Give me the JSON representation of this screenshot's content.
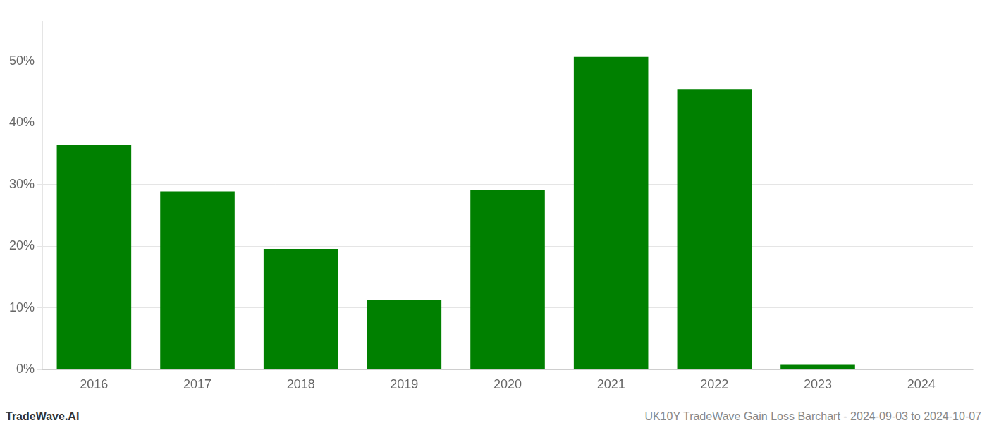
{
  "chart_data": {
    "type": "bar",
    "categories": [
      "2016",
      "2017",
      "2018",
      "2019",
      "2020",
      "2021",
      "2022",
      "2023",
      "2024"
    ],
    "values": [
      0.364,
      0.289,
      0.196,
      0.113,
      0.292,
      0.507,
      0.455,
      0.008,
      0.0
    ],
    "color": "#008000",
    "ylim": [
      0,
      0.565
    ],
    "yticks": [
      {
        "value": 0.0,
        "label": "0%"
      },
      {
        "value": 0.1,
        "label": "10%"
      },
      {
        "value": 0.2,
        "label": "20%"
      },
      {
        "value": 0.3,
        "label": "30%"
      },
      {
        "value": 0.4,
        "label": "40%"
      },
      {
        "value": 0.5,
        "label": "50%"
      }
    ],
    "grid": true,
    "annotations": [
      "TradeWave.AI",
      "UK10Y TradeWave Gain Loss Barchart - 2024-09-03 to 2024-10-07"
    ]
  }
}
